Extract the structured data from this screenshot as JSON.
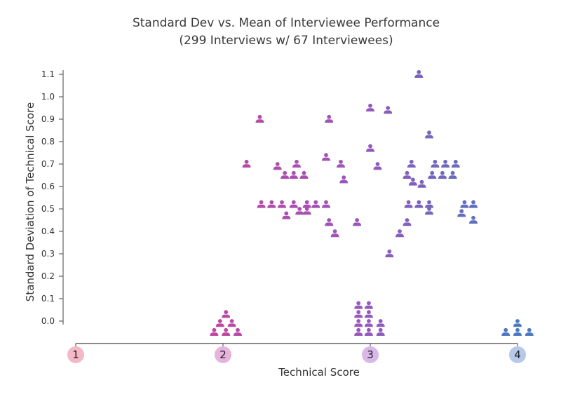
{
  "chart_data": {
    "type": "scatter",
    "title": "Standard Dev vs. Mean of Interviewee Performance",
    "subtitle": "(299 Interviews w/ 67 Interviewees)",
    "xlabel": "Technical Score",
    "ylabel": "Standard Deviation of Technical Score",
    "xlim": [
      1,
      4
    ],
    "ylim": [
      -0.1,
      1.15
    ],
    "x_ticks": [
      "1",
      "2",
      "3",
      "4"
    ],
    "x_tick_colors": [
      "#f4b8c8",
      "#e6b3dc",
      "#d9b7e8",
      "#b6c9e9"
    ],
    "y_ticks": [
      "0.0",
      "0.1",
      "0.2",
      "0.3",
      "0.4",
      "0.5",
      "0.6",
      "0.7",
      "0.8",
      "0.9",
      "1.0",
      "1.1"
    ],
    "y_tick_values": [
      0.0,
      0.1,
      0.2,
      0.3,
      0.4,
      0.5,
      0.6,
      0.7,
      0.8,
      0.9,
      1.0,
      1.1
    ],
    "grid": false,
    "marker": "person-icon",
    "color_scale": {
      "low": "#c0469f",
      "mid": "#9a56bb",
      "high": "#4a78c0"
    },
    "points": [
      [
        1.94,
        -0.05
      ],
      [
        2.02,
        -0.05
      ],
      [
        2.1,
        -0.05
      ],
      [
        1.98,
        -0.01
      ],
      [
        2.06,
        -0.01
      ],
      [
        2.02,
        0.03
      ],
      [
        2.16,
        0.7
      ],
      [
        2.25,
        0.9
      ],
      [
        2.26,
        0.52
      ],
      [
        2.33,
        0.52
      ],
      [
        2.4,
        0.52
      ],
      [
        2.37,
        0.69
      ],
      [
        2.42,
        0.65
      ],
      [
        2.48,
        0.65
      ],
      [
        2.5,
        0.7
      ],
      [
        2.55,
        0.65
      ],
      [
        2.43,
        0.47
      ],
      [
        2.48,
        0.52
      ],
      [
        2.52,
        0.49
      ],
      [
        2.57,
        0.52
      ],
      [
        2.57,
        0.49
      ],
      [
        2.63,
        0.52
      ],
      [
        2.7,
        0.52
      ],
      [
        2.72,
        0.9
      ],
      [
        2.7,
        0.73
      ],
      [
        2.72,
        0.44
      ],
      [
        2.76,
        0.39
      ],
      [
        2.8,
        0.7
      ],
      [
        2.82,
        0.63
      ],
      [
        2.91,
        0.44
      ],
      [
        2.92,
        -0.05
      ],
      [
        2.99,
        -0.05
      ],
      [
        3.07,
        -0.05
      ],
      [
        2.92,
        -0.01
      ],
      [
        2.99,
        -0.01
      ],
      [
        3.07,
        -0.01
      ],
      [
        2.92,
        0.03
      ],
      [
        2.99,
        0.03
      ],
      [
        2.92,
        0.07
      ],
      [
        2.99,
        0.07
      ],
      [
        3.0,
        0.95
      ],
      [
        3.12,
        0.94
      ],
      [
        3.0,
        0.77
      ],
      [
        3.05,
        0.69
      ],
      [
        3.13,
        0.3
      ],
      [
        3.2,
        0.39
      ],
      [
        3.25,
        0.44
      ],
      [
        3.26,
        0.52
      ],
      [
        3.25,
        0.65
      ],
      [
        3.28,
        0.7
      ],
      [
        3.29,
        0.62
      ],
      [
        3.33,
        0.52
      ],
      [
        3.35,
        0.61
      ],
      [
        3.33,
        1.1
      ],
      [
        3.4,
        0.52
      ],
      [
        3.4,
        0.49
      ],
      [
        3.4,
        0.83
      ],
      [
        3.42,
        0.65
      ],
      [
        3.44,
        0.7
      ],
      [
        3.49,
        0.65
      ],
      [
        3.51,
        0.7
      ],
      [
        3.56,
        0.65
      ],
      [
        3.58,
        0.7
      ],
      [
        3.62,
        0.48
      ],
      [
        3.64,
        0.52
      ],
      [
        3.7,
        0.45
      ],
      [
        3.7,
        0.52
      ],
      [
        3.92,
        -0.05
      ],
      [
        4.0,
        -0.05
      ],
      [
        4.08,
        -0.05
      ],
      [
        4.0,
        -0.01
      ]
    ]
  }
}
